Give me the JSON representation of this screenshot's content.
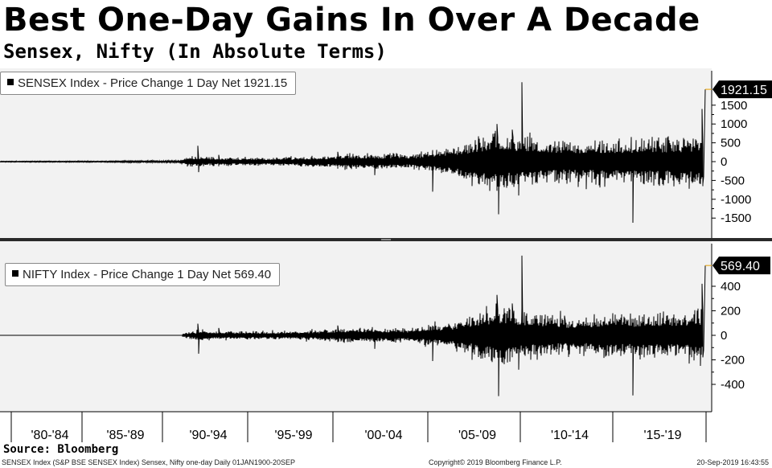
{
  "header": {
    "title": "Best One-Day Gains In Over A Decade",
    "subtitle": "Sensex, Nifty (In Absolute Terms)"
  },
  "source": "Source: Bloomberg",
  "footer": {
    "left": "SENSEX Index (S&P BSE SENSEX Index) Sensex, Nifty one-day  Daily 01JAN1900-20SEP",
    "center": "Copyright© 2019 Bloomberg Finance L.P.",
    "right": "20-Sep-2019 16:43:55"
  },
  "colors": {
    "line": "#000000",
    "panel_bg": "#f2f2f2",
    "last_marker": "#e8a000",
    "label_bg": "#000000"
  },
  "x_labels": [
    "'80-'84",
    "'85-'89",
    "'90-'94",
    "'95-'99",
    "'00-'04",
    "'05-'09",
    "'10-'14",
    "'15-'19"
  ],
  "chart_data": [
    {
      "type": "line",
      "legend": "SENSEX Index - Price Change 1 Day Net 1921.15",
      "series": [
        {
          "name": "SENSEX Index - Price Change 1 Day Net",
          "last_value": 1921.15
        }
      ],
      "last_label": "1921.15",
      "y_ticks": [
        1500,
        1000,
        500,
        0,
        -500,
        -1000,
        -1500
      ],
      "y_tick_labels": [
        "1500",
        "1000",
        "500",
        "0",
        "-500",
        "-1000",
        "-1500"
      ],
      "ylim": [
        -2000,
        2100
      ],
      "x_range": [
        1980,
        2019.72
      ],
      "start_year": 1980,
      "envelope": [
        [
          1980,
          8
        ],
        [
          1986,
          10
        ],
        [
          1990,
          22
        ],
        [
          1990.8,
          110
        ],
        [
          1992,
          80
        ],
        [
          1995,
          75
        ],
        [
          1998,
          100
        ],
        [
          2000,
          150
        ],
        [
          2003,
          130
        ],
        [
          2005.5,
          280
        ],
        [
          2008,
          600
        ],
        [
          2009.5,
          460
        ],
        [
          2012,
          380
        ],
        [
          2015,
          420
        ],
        [
          2018,
          440
        ],
        [
          2019.5,
          500
        ]
      ],
      "spikes": [
        [
          1991.15,
          420
        ],
        [
          1991.2,
          -280
        ],
        [
          1992.3,
          180
        ],
        [
          1999.0,
          260
        ],
        [
          2001.1,
          -360
        ],
        [
          2004.35,
          -800
        ],
        [
          2006.6,
          -650
        ],
        [
          2008.0,
          1000
        ],
        [
          2008.1,
          -1400
        ],
        [
          2008.85,
          850
        ],
        [
          2009.2,
          -900
        ],
        [
          2009.38,
          2110
        ],
        [
          2011.8,
          520
        ],
        [
          2015.65,
          -1624
        ],
        [
          2016.3,
          -600
        ],
        [
          2018.8,
          -720
        ],
        [
          2019.52,
          1400
        ],
        [
          2019.58,
          -600
        ],
        [
          2019.72,
          1921.15
        ]
      ]
    },
    {
      "type": "line",
      "legend": "NIFTY Index - Price Change 1 Day Net 569.40",
      "series": [
        {
          "name": "NIFTY Index - Price Change 1 Day Net",
          "last_value": 569.4
        }
      ],
      "last_label": "569.40",
      "y_ticks": [
        400,
        200,
        0,
        -200,
        -400
      ],
      "y_tick_labels": [
        "400",
        "200",
        "0",
        "-200",
        "-400"
      ],
      "ylim": [
        -560,
        660
      ],
      "x_range": [
        1980,
        2019.72
      ],
      "start_year": 1990.3,
      "envelope": [
        [
          1990.3,
          12
        ],
        [
          1991.2,
          30
        ],
        [
          1992.5,
          25
        ],
        [
          1995,
          22
        ],
        [
          1998,
          30
        ],
        [
          2000,
          45
        ],
        [
          2003,
          40
        ],
        [
          2005.5,
          80
        ],
        [
          2008,
          180
        ],
        [
          2009.5,
          140
        ],
        [
          2012,
          110
        ],
        [
          2015,
          125
        ],
        [
          2018,
          130
        ],
        [
          2019.5,
          150
        ]
      ],
      "spikes": [
        [
          1991.15,
          95
        ],
        [
          1991.2,
          -150
        ],
        [
          1992.3,
          60
        ],
        [
          1999.0,
          80
        ],
        [
          2001.1,
          -110
        ],
        [
          2004.35,
          -210
        ],
        [
          2006.6,
          -200
        ],
        [
          2008.0,
          330
        ],
        [
          2008.1,
          -496
        ],
        [
          2008.85,
          260
        ],
        [
          2009.2,
          -280
        ],
        [
          2009.38,
          650
        ],
        [
          2011.8,
          160
        ],
        [
          2015.65,
          -490
        ],
        [
          2016.3,
          -180
        ],
        [
          2018.8,
          -230
        ],
        [
          2019.52,
          420
        ],
        [
          2019.58,
          -180
        ],
        [
          2019.72,
          569.4
        ]
      ]
    }
  ]
}
